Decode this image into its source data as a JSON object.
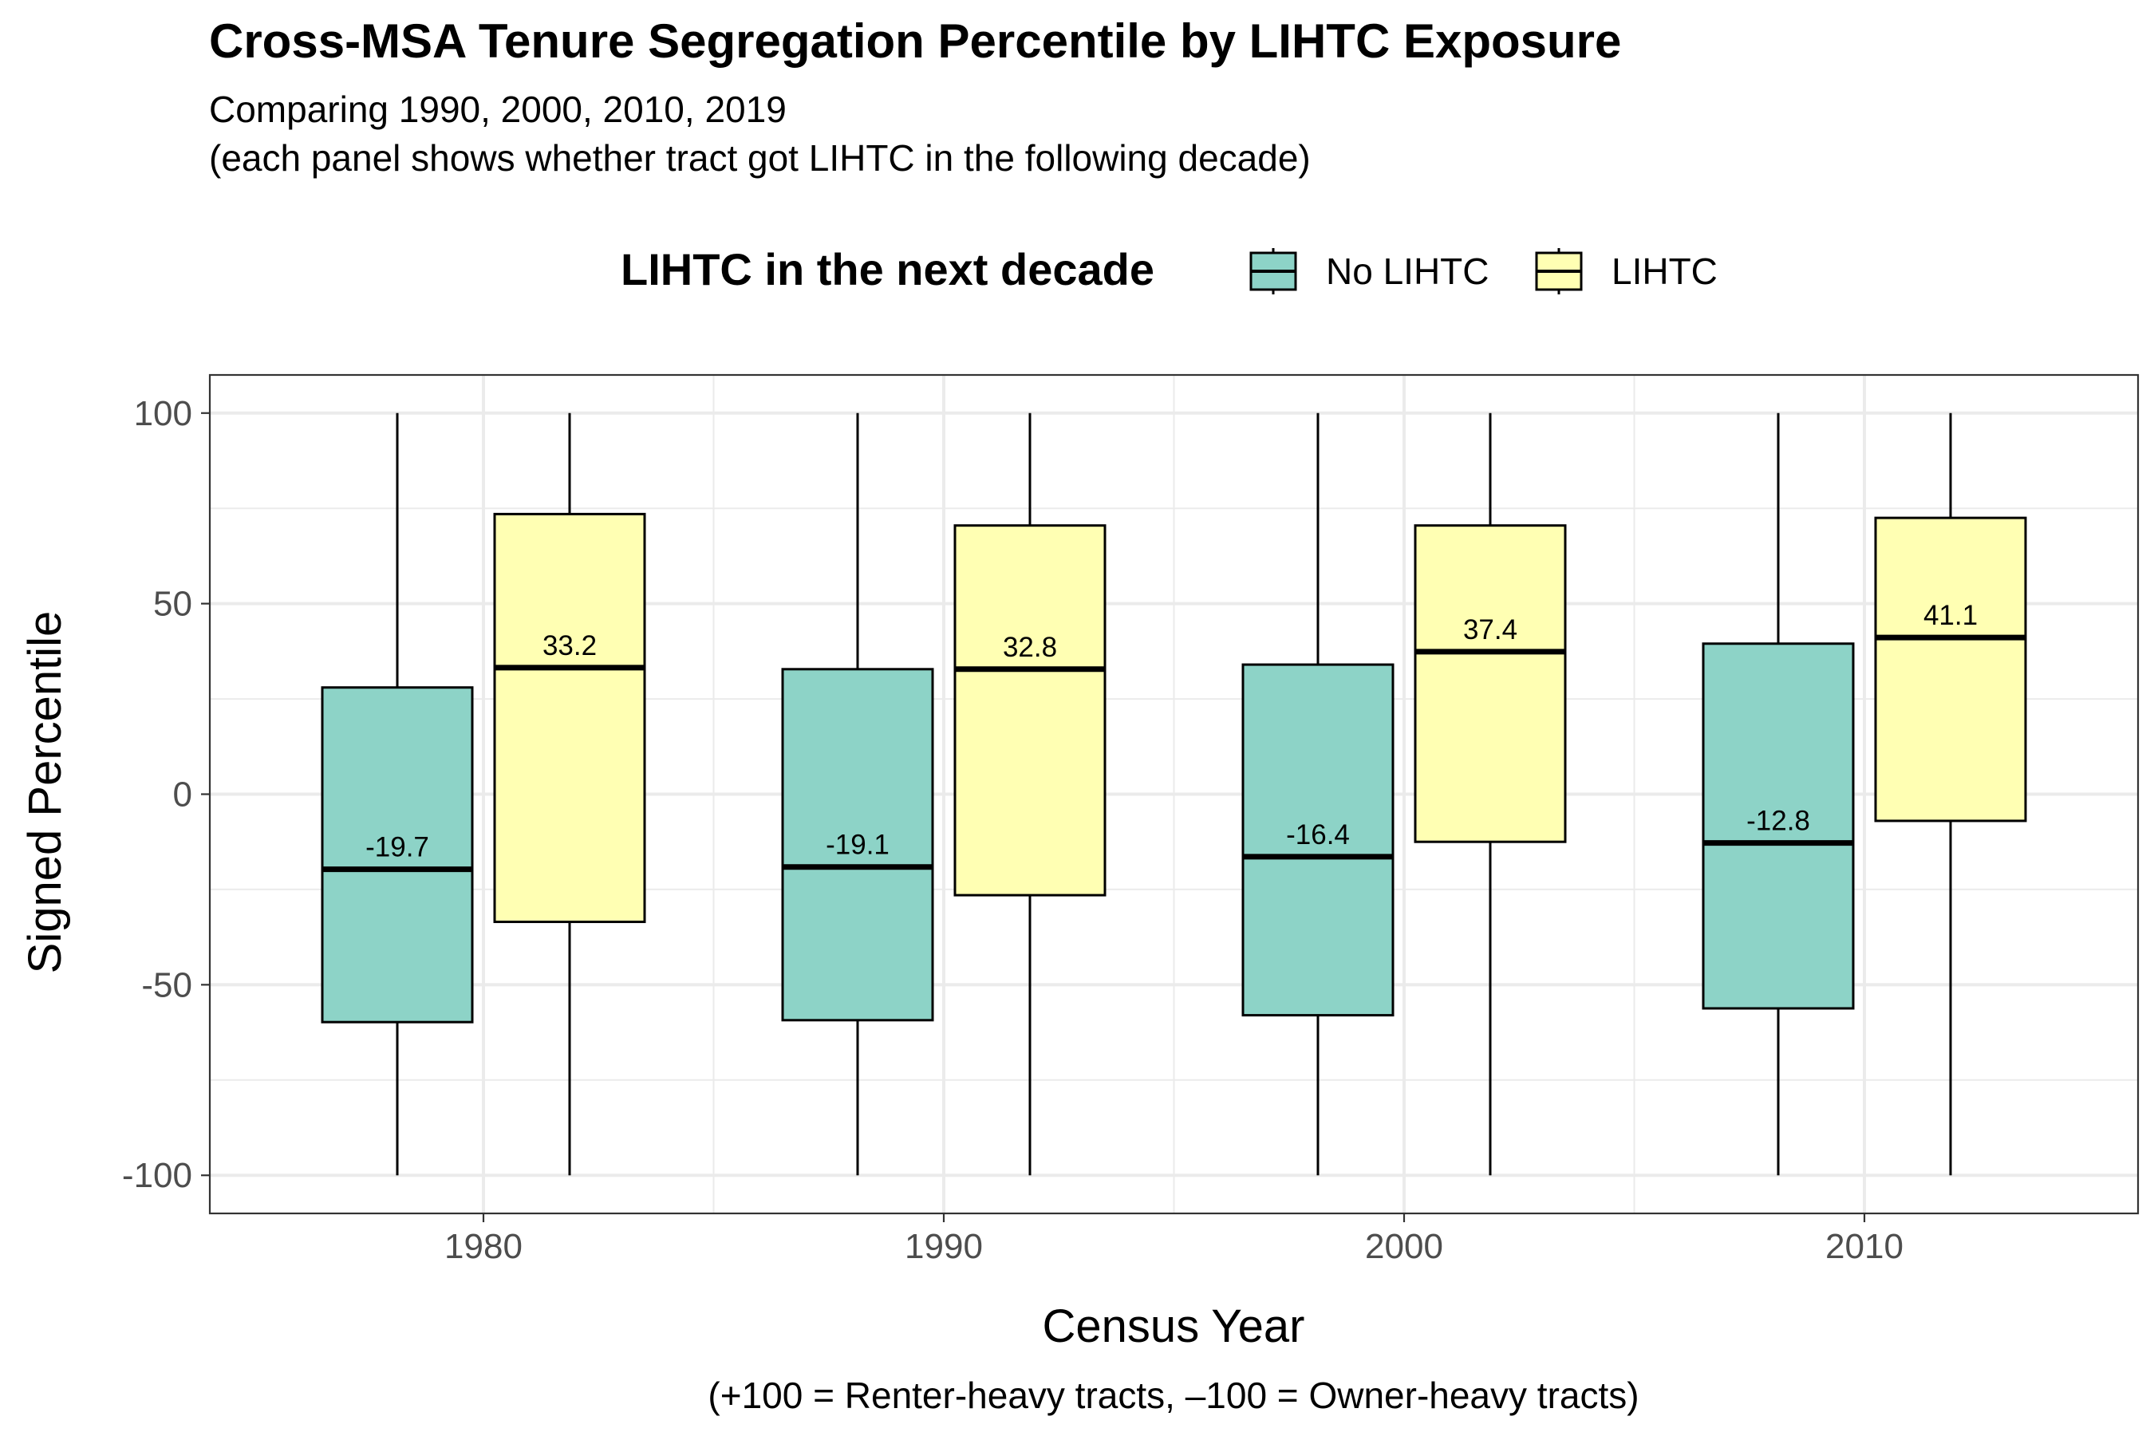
{
  "chart_data": {
    "type": "boxplot",
    "title": "Cross-MSA Tenure Segregation Percentile by LIHTC Exposure",
    "subtitle_lines": [
      "Comparing 1990, 2000, 2010, 2019",
      "(each panel shows whether tract got LIHTC in the following decade)"
    ],
    "xlabel": "Census Year",
    "ylabel": "Signed Percentile",
    "caption": "(+100 = Renter-heavy tracts, –100 = Owner-heavy tracts)",
    "legend_title": "LIHTC in the next decade",
    "legend_position": "top",
    "grid": true,
    "categories": [
      "1980",
      "1990",
      "2000",
      "2010"
    ],
    "ylim": [
      -110,
      110
    ],
    "yticks": [
      100,
      50,
      0,
      -50,
      -100
    ],
    "ytick_labels": [
      "100",
      "50",
      "0",
      "-50",
      "-100"
    ],
    "series": [
      {
        "name": "No LIHTC",
        "color": "#8DD3C7",
        "boxes": [
          {
            "min": -100,
            "q1": -59.8,
            "median": -19.7,
            "q3": 28.0,
            "max": 100
          },
          {
            "min": -100,
            "q1": -59.3,
            "median": -19.1,
            "q3": 32.8,
            "max": 100
          },
          {
            "min": -100,
            "q1": -58.0,
            "median": -16.4,
            "q3": 34.0,
            "max": 100
          },
          {
            "min": -100,
            "q1": -56.2,
            "median": -12.8,
            "q3": 39.5,
            "max": 100
          }
        ],
        "median_labels": [
          "-19.7",
          "-19.1",
          "-16.4",
          "-12.8"
        ]
      },
      {
        "name": "LIHTC",
        "color": "#FFFFB3",
        "boxes": [
          {
            "min": -100,
            "q1": -33.5,
            "median": 33.2,
            "q3": 73.5,
            "max": 100
          },
          {
            "min": -100,
            "q1": -26.5,
            "median": 32.8,
            "q3": 70.5,
            "max": 100
          },
          {
            "min": -100,
            "q1": -12.5,
            "median": 37.4,
            "q3": 70.5,
            "max": 100
          },
          {
            "min": -100,
            "q1": -7.0,
            "median": 41.1,
            "q3": 72.5,
            "max": 100
          }
        ],
        "median_labels": [
          "33.2",
          "32.8",
          "37.4",
          "41.1"
        ]
      }
    ]
  }
}
